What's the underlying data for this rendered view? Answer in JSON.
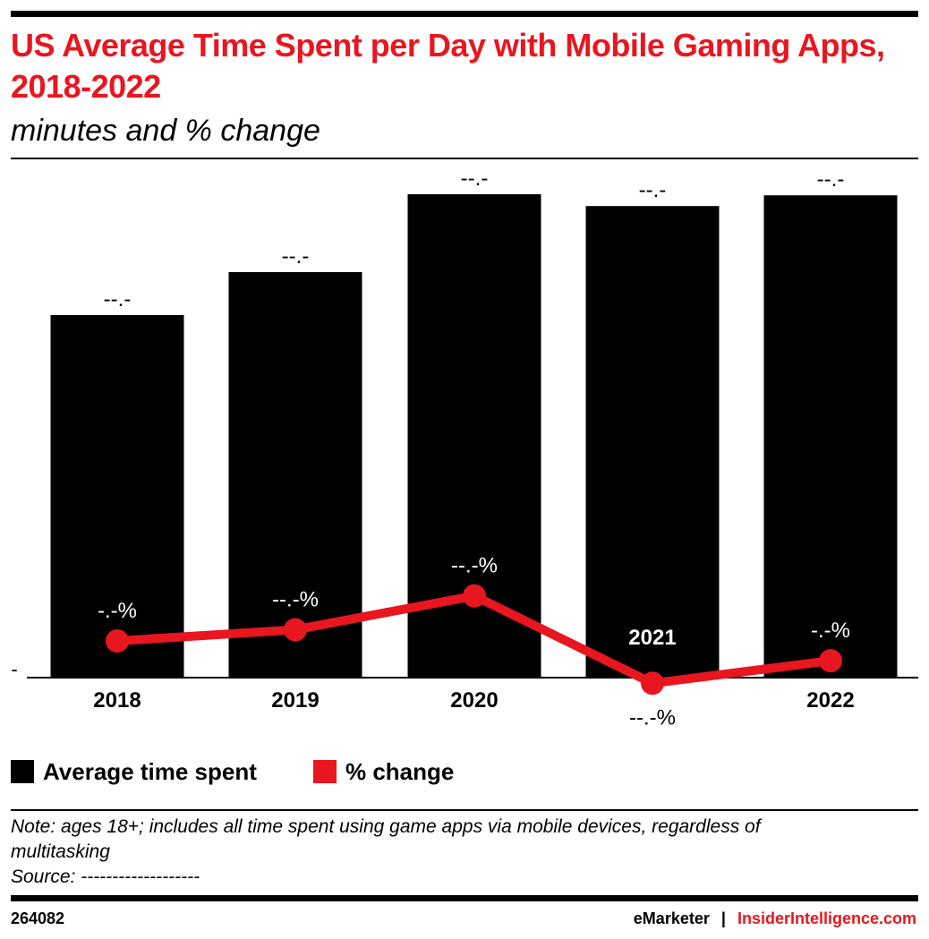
{
  "header": {
    "title": "US Average Time Spent per Day with Mobile Gaming Apps, 2018-2022",
    "subtitle": "minutes and % change"
  },
  "legend": {
    "items": [
      {
        "label": "Average time spent",
        "color": "#000000"
      },
      {
        "label": "% change",
        "color": "#e8161f"
      }
    ]
  },
  "chart_data": {
    "type": "bar",
    "categories": [
      "2018",
      "2019",
      "2020",
      "2021",
      "2022"
    ],
    "bar_series": {
      "name": "Average time spent",
      "values": [
        67.5,
        75.5,
        90.0,
        87.8,
        89.8
      ],
      "labels": [
        "--.-",
        "--.-",
        "--.-",
        "--.-",
        "--.-"
      ],
      "color": "#000000"
    },
    "line_series": {
      "name": "% change",
      "values": [
        6.5,
        8.5,
        14.5,
        -1.0,
        3.0
      ],
      "labels": [
        "-.-%",
        "--.-%",
        "--.-%",
        "--.-%",
        "-.-%"
      ],
      "color": "#e8161f"
    },
    "annotations": [
      {
        "category": "2021",
        "text": "2021"
      }
    ],
    "y_tick_label": "-",
    "ylim_bars": [
      0,
      100
    ],
    "grid": false,
    "legend_position": "bottom-left"
  },
  "note": {
    "line1": "Note: ages 18+; includes all time spent using game apps via mobile devices, regardless of",
    "line2": "multitasking",
    "source": "Source: -------------------"
  },
  "footer": {
    "chart_id": "264082",
    "brand": "eMarketer",
    "separator": "|",
    "brand2": "InsiderIntelligence.com"
  }
}
